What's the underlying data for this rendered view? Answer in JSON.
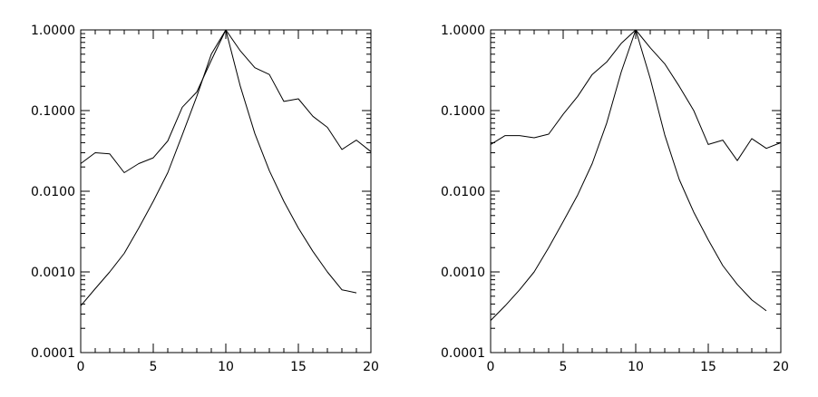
{
  "chart_data": [
    {
      "type": "line",
      "title": "",
      "xlabel": "",
      "ylabel": "",
      "xlim": [
        0,
        20
      ],
      "ylim": [
        0.0001,
        1
      ],
      "yscale": "log",
      "grid": false,
      "xticks": [
        0,
        5,
        10,
        15,
        20
      ],
      "xtick_labels": [
        "0",
        "5",
        "10",
        "15",
        "20"
      ],
      "yticks": [
        0.0001,
        0.001,
        0.01,
        0.1,
        1
      ],
      "ytick_labels": [
        "0.0001",
        "0.0010",
        "0.0100",
        "0.1000",
        "1.0000"
      ],
      "line_color": "#000000",
      "series": [
        {
          "x": [
            0,
            1,
            2,
            3,
            4,
            5,
            6,
            7,
            8,
            9,
            10,
            11,
            12,
            13,
            14,
            15,
            16,
            17,
            18,
            19,
            20
          ],
          "values": [
            0.022,
            0.03,
            0.029,
            0.017,
            0.022,
            0.026,
            0.042,
            0.11,
            0.17,
            0.42,
            1.0,
            0.55,
            0.34,
            0.28,
            0.13,
            0.14,
            0.085,
            0.062,
            0.033,
            0.043,
            0.031
          ]
        },
        {
          "x": [
            0,
            1,
            2,
            3,
            4,
            5,
            6,
            7,
            8,
            9,
            10,
            11,
            12,
            13,
            14,
            15,
            16,
            17,
            18,
            19
          ],
          "values": [
            0.00038,
            0.00062,
            0.001,
            0.0017,
            0.0035,
            0.0075,
            0.017,
            0.05,
            0.15,
            0.5,
            1.0,
            0.2,
            0.052,
            0.018,
            0.0075,
            0.0035,
            0.0018,
            0.001,
            0.0006,
            0.00055
          ]
        }
      ]
    },
    {
      "type": "line",
      "title": "",
      "xlabel": "",
      "ylabel": "",
      "xlim": [
        0,
        20
      ],
      "ylim": [
        0.0001,
        1
      ],
      "yscale": "log",
      "grid": false,
      "xticks": [
        0,
        5,
        10,
        15,
        20
      ],
      "xtick_labels": [
        "0",
        "5",
        "10",
        "15",
        "20"
      ],
      "yticks": [
        0.0001,
        0.001,
        0.01,
        0.1,
        1
      ],
      "ytick_labels": [
        "0.0001",
        "0.0010",
        "0.0100",
        "0.1000",
        "1.0000"
      ],
      "line_color": "#000000",
      "series": [
        {
          "x": [
            0,
            1,
            2,
            3,
            4,
            5,
            6,
            7,
            8,
            9,
            10,
            11,
            12,
            13,
            14,
            15,
            16,
            17,
            18,
            19,
            20
          ],
          "values": [
            0.038,
            0.049,
            0.049,
            0.046,
            0.051,
            0.09,
            0.15,
            0.28,
            0.4,
            0.68,
            1.0,
            0.6,
            0.38,
            0.2,
            0.1,
            0.038,
            0.043,
            0.024,
            0.045,
            0.034,
            0.04
          ]
        },
        {
          "x": [
            0,
            1,
            2,
            3,
            4,
            5,
            6,
            7,
            8,
            9,
            10,
            11,
            12,
            13,
            14,
            15,
            16,
            17,
            18,
            19
          ],
          "values": [
            0.00025,
            0.00038,
            0.0006,
            0.001,
            0.002,
            0.0042,
            0.009,
            0.022,
            0.07,
            0.3,
            1.0,
            0.25,
            0.05,
            0.014,
            0.0055,
            0.0025,
            0.0012,
            0.0007,
            0.00045,
            0.00033
          ]
        }
      ]
    }
  ]
}
